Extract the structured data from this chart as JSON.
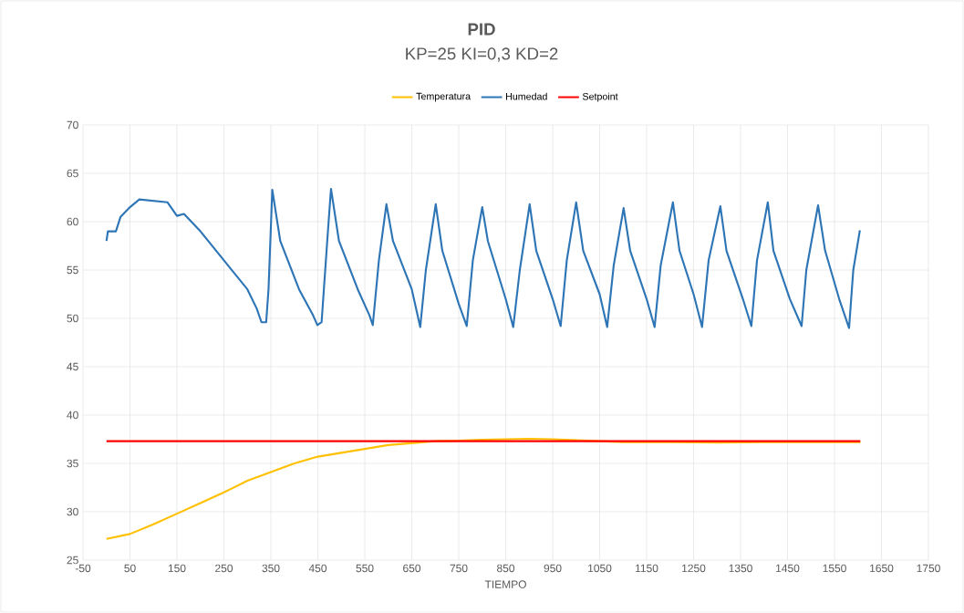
{
  "chart_data": {
    "type": "line",
    "title": "PID",
    "subtitle": "KP=25  KI=0,3  KD=2",
    "xlabel": "TIEMPO",
    "xlim": [
      -50,
      1750
    ],
    "xticks": [
      -50,
      50,
      150,
      250,
      350,
      450,
      550,
      650,
      750,
      850,
      950,
      1050,
      1150,
      1250,
      1350,
      1450,
      1550,
      1650,
      1750
    ],
    "ylim": [
      25,
      70
    ],
    "yticks": [
      25,
      30,
      35,
      40,
      45,
      50,
      55,
      60,
      65,
      70
    ],
    "grid": true,
    "legend": "top",
    "series": [
      {
        "name": "Temperatura",
        "color": "#ffc000",
        "x": [
          0,
          50,
          100,
          150,
          200,
          250,
          300,
          350,
          400,
          450,
          500,
          550,
          600,
          650,
          700,
          750,
          800,
          850,
          900,
          950,
          1000,
          1050,
          1100,
          1200,
          1300,
          1400,
          1500,
          1605
        ],
        "values": [
          27.2,
          27.7,
          28.7,
          29.8,
          30.9,
          32,
          33.2,
          34.1,
          35,
          35.7,
          36.1,
          36.5,
          36.9,
          37.1,
          37.3,
          37.35,
          37.45,
          37.5,
          37.55,
          37.5,
          37.4,
          37.3,
          37.2,
          37.2,
          37.15,
          37.2,
          37.2,
          37.2
        ]
      },
      {
        "name": "Humedad",
        "color": "#2e75b6",
        "x": [
          0,
          3,
          20,
          30,
          50,
          70,
          130,
          150,
          165,
          200,
          250,
          300,
          320,
          330,
          340,
          345,
          353,
          370,
          410,
          440,
          449,
          458,
          470,
          478,
          495,
          535,
          560,
          567,
          580,
          596,
          610,
          650,
          668,
          680,
          701,
          715,
          750,
          767,
          780,
          800,
          812,
          850,
          866,
          880,
          901,
          915,
          950,
          967,
          980,
          1000,
          1015,
          1050,
          1066,
          1080,
          1101,
          1115,
          1150,
          1167,
          1180,
          1206,
          1220,
          1250,
          1268,
          1282,
          1307,
          1320,
          1355,
          1373,
          1385,
          1408,
          1420,
          1455,
          1480,
          1490,
          1515,
          1530,
          1560,
          1581,
          1590,
          1604
        ],
        "values": [
          58,
          59,
          59,
          60.5,
          61.5,
          62.3,
          62,
          60.6,
          60.8,
          59,
          56,
          53,
          51,
          49.6,
          49.6,
          53,
          63.3,
          58,
          53,
          50.3,
          49.3,
          49.6,
          58,
          63.4,
          58,
          53,
          50.3,
          49.3,
          56,
          61.8,
          58,
          53,
          49.1,
          55,
          61.8,
          57,
          51.5,
          49.2,
          56,
          61.5,
          58,
          52,
          49.1,
          55,
          61.8,
          57,
          52,
          49.2,
          56,
          62,
          57,
          52.5,
          49.1,
          55.5,
          61.4,
          57,
          52,
          49.1,
          55.5,
          62,
          57,
          52.5,
          49.1,
          56,
          61.6,
          57,
          52,
          49.2,
          56,
          62,
          57,
          52,
          49.2,
          55,
          61.7,
          57,
          52,
          49,
          55,
          59.1
        ]
      },
      {
        "name": "Setpoint",
        "color": "#ff0000",
        "x": [
          0,
          1605
        ],
        "values": [
          37.3,
          37.3
        ]
      }
    ]
  }
}
